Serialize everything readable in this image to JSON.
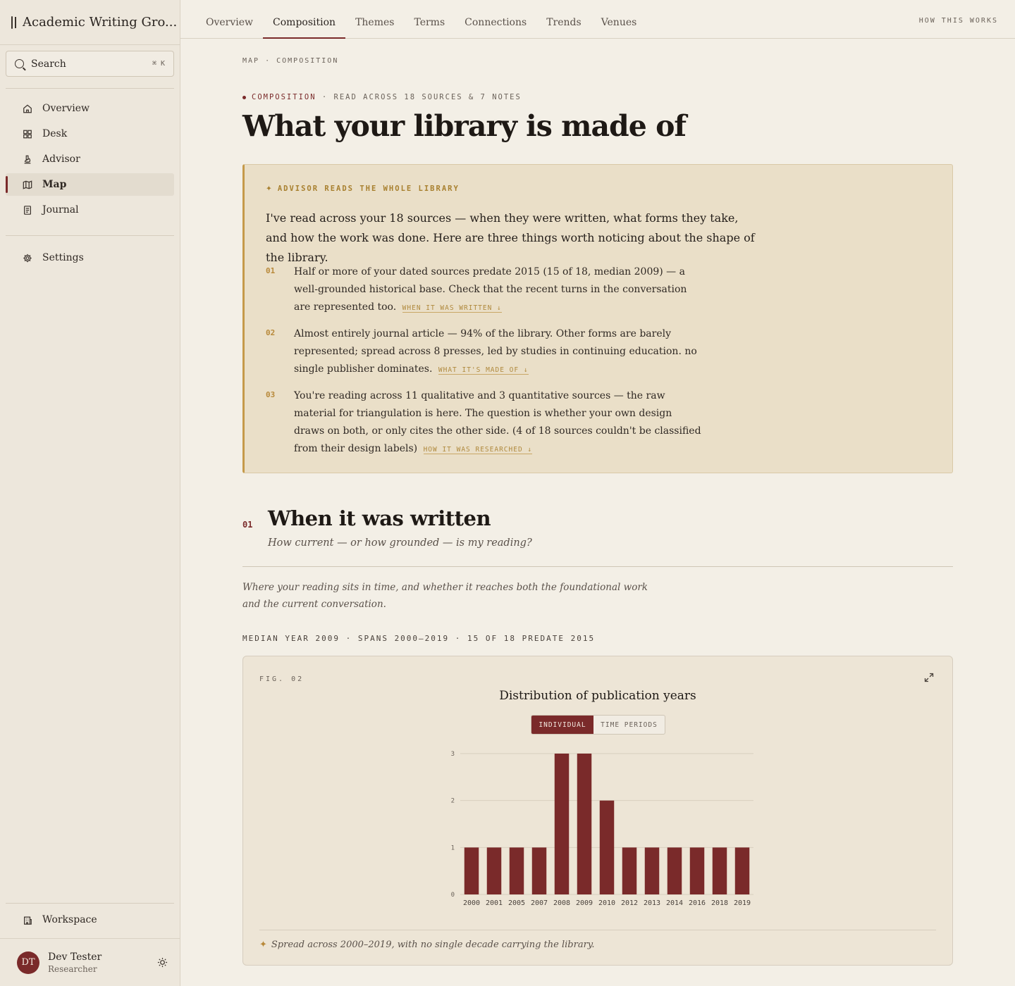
{
  "app": {
    "title": "Academic Writing Gro..."
  },
  "search": {
    "label": "Search",
    "shortcut": "⌘ K"
  },
  "nav": [
    {
      "label": "Overview",
      "icon": "home-icon",
      "active": false
    },
    {
      "label": "Desk",
      "icon": "grid-icon",
      "active": false
    },
    {
      "label": "Advisor",
      "icon": "microscope-icon",
      "active": false
    },
    {
      "label": "Map",
      "icon": "map-icon",
      "active": true
    },
    {
      "label": "Journal",
      "icon": "journal-icon",
      "active": false
    }
  ],
  "settings": {
    "label": "Settings"
  },
  "workspace": {
    "label": "Workspace"
  },
  "user": {
    "initials": "DT",
    "name": "Dev Tester",
    "role": "Researcher"
  },
  "tabs": [
    "Overview",
    "Composition",
    "Themes",
    "Terms",
    "Connections",
    "Trends",
    "Venues"
  ],
  "active_tab": "Composition",
  "how_link": "HOW THIS WORKS",
  "breadcrumb": "MAP · COMPOSITION",
  "eyebrow": {
    "section": "COMPOSITION",
    "detail": "· READ ACROSS 18 SOURCES & 7 NOTES"
  },
  "page_title": "What your library is made of",
  "advisor": {
    "label": "ADVISOR READS THE WHOLE LIBRARY",
    "lead": "I've read across your 18 sources — when they were written, what forms they take, and how the work was done. Here are three things worth noticing about the shape of the library.",
    "items": [
      {
        "num": "01",
        "text": "Half or more of your dated sources predate 2015 (15 of 18, median 2009) — a well-grounded historical base. Check that the recent turns in the conversation are represented too.",
        "link": "WHEN IT WAS WRITTEN ↓"
      },
      {
        "num": "02",
        "text": "Almost entirely journal article — 94% of the library. Other forms are barely represented; spread across 8 presses, led by studies in continuing education. no single publisher dominates.",
        "link": "WHAT IT'S MADE OF ↓"
      },
      {
        "num": "03",
        "text": "You're reading across 11 qualitative and 3 quantitative sources — the raw material for triangulation is here. The question is whether your own design draws on both, or only cites the other side. (4 of 18 sources couldn't be classified from their design labels)",
        "link": "HOW IT WAS RESEARCHED ↓"
      }
    ]
  },
  "section": {
    "num": "01",
    "title": "When it was written",
    "subtitle": "How current — or how grounded — is my reading?",
    "description": "Where your reading sits in time, and whether it reaches both the foundational work and the current conversation.",
    "stats": "MEDIAN YEAR 2009 · SPANS 2000–2019 · 15 OF 18 PREDATE 2015"
  },
  "figure": {
    "label": "FIG. 02",
    "title": "Distribution of publication years",
    "toggle": {
      "a": "INDIVIDUAL",
      "b": "TIME PERIODS"
    },
    "note": "Spread across 2000–2019, with no single decade carrying the library."
  },
  "chart_data": {
    "type": "bar",
    "title": "Distribution of publication years",
    "categories": [
      "2000",
      "2001",
      "2005",
      "2007",
      "2008",
      "2009",
      "2010",
      "2012",
      "2013",
      "2014",
      "2016",
      "2018",
      "2019"
    ],
    "values": [
      1,
      1,
      1,
      1,
      3,
      3,
      2,
      1,
      1,
      1,
      1,
      1,
      1
    ],
    "ylim": [
      0,
      3
    ],
    "yticks": [
      0,
      1,
      2,
      3
    ],
    "bar_color": "#7a2a2a",
    "grid": true
  },
  "colors": {
    "accent": "#7a2a2a",
    "gold": "#b8893a",
    "background": "#f3efe6"
  }
}
